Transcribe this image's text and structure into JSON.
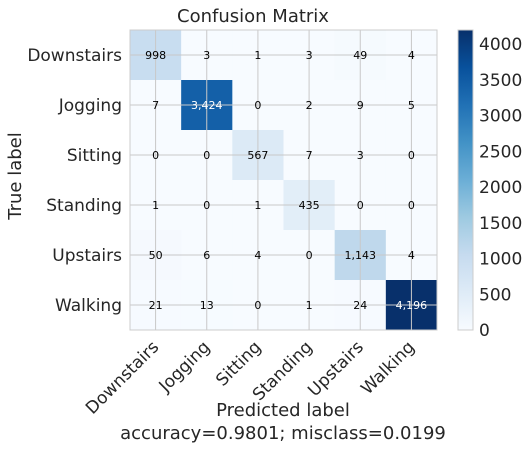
{
  "chart_data": {
    "type": "heatmap",
    "title": "Confusion Matrix",
    "ylabel": "True label",
    "xlabel": "Predicted label",
    "xlabel_line2": "accuracy=0.9801; misclass=0.0199",
    "labels": [
      "Downstairs",
      "Jogging",
      "Sitting",
      "Standing",
      "Upstairs",
      "Walking"
    ],
    "matrix_display": [
      [
        "998",
        "3",
        "1",
        "3",
        "49",
        "4"
      ],
      [
        "7",
        "3,424",
        "0",
        "2",
        "9",
        "5"
      ],
      [
        "0",
        "0",
        "567",
        "7",
        "3",
        "0"
      ],
      [
        "1",
        "0",
        "1",
        "435",
        "0",
        "0"
      ],
      [
        "50",
        "6",
        "4",
        "0",
        "1,143",
        "4"
      ],
      [
        "21",
        "13",
        "0",
        "1",
        "24",
        "4,196"
      ]
    ],
    "matrix": [
      [
        998,
        3,
        1,
        3,
        49,
        4
      ],
      [
        7,
        3424,
        0,
        2,
        9,
        5
      ],
      [
        0,
        0,
        567,
        7,
        3,
        0
      ],
      [
        1,
        0,
        1,
        435,
        0,
        0
      ],
      [
        50,
        6,
        4,
        0,
        1143,
        4
      ],
      [
        21,
        13,
        0,
        1,
        24,
        4196
      ]
    ],
    "colorbar": {
      "colormap": "Blues",
      "vmin": 0,
      "vmax": 4196,
      "ticks": [
        "0",
        "500",
        "1000",
        "1500",
        "2000",
        "2500",
        "3000",
        "3500",
        "4000"
      ],
      "tick_values": [
        0,
        500,
        1000,
        1500,
        2000,
        2500,
        3000,
        3500,
        4000
      ]
    },
    "grid": true
  }
}
